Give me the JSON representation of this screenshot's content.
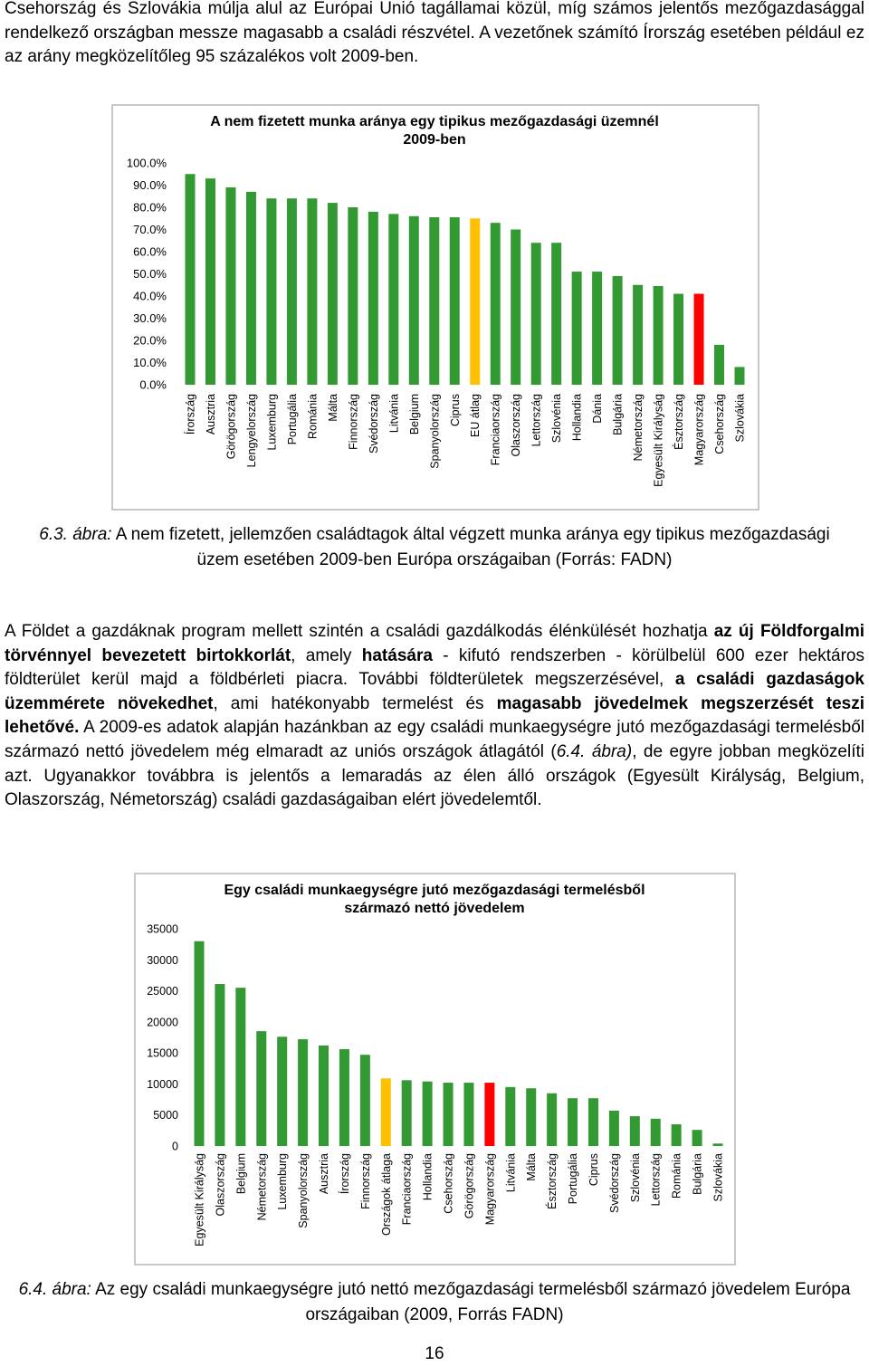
{
  "intro": "Csehország és Szlovákia múlja alul az Európai Unió tagállamai közül, míg számos jelentős mezőgazdasággal rendelkező országban messze magasabb a családi részvétel. A vezetőnek számító Írország esetében például ez az arány megközelítőleg 95 százalékos volt 2009-ben.",
  "figure_1_caption": {
    "label": "6.3. ábra:",
    "text": "A nem fizetett, jellemzően családtagok által végzett munka aránya egy tipikus mezőgazdasági üzem esetében 2009-ben Európa országaiban (Forrás: FADN)"
  },
  "body": [
    {
      "text": "A Földet a gazdáknak program mellett szintén a családi gazdálkodás élénkülését hozhatja "
    },
    {
      "text": "az új Földforgalmi törvénnyel bevezetett birtokkorlát",
      "style": "bold"
    },
    {
      "text": ", amely "
    },
    {
      "text": "hatására",
      "style": "bold"
    },
    {
      "text": " - kifutó rendszerben - körülbelül 600 ezer hektáros földterület kerül majd a földbérleti piacra. További földterületek megszerzésével, "
    },
    {
      "text": "a családi gazdaságok üzemmérete növekedhet",
      "style": "bold"
    },
    {
      "text": ", ami hatékonyabb termelést és "
    },
    {
      "text": "magasabb jövedelmek megszerzését teszi lehetővé.",
      "style": "bold"
    },
    {
      "text": " A 2009-es adatok alapján hazánkban az egy családi munkaegységre jutó mezőgazdasági termelésből származó nettó jövedelem még elmaradt az uniós országok átlagától ("
    },
    {
      "text": "6.4. ábra)",
      "style": "italic"
    },
    {
      "text": ", de egyre jobban megközelíti azt. Ugyanakkor továbbra is jelentős a lemaradás az élen álló országok (Egyesült Királyság, Belgium, Olaszország, Németország) családi gazdaságaiban elért jövedelemtől."
    }
  ],
  "figure_2_caption": {
    "label": "6.4. ábra:",
    "text": "Az egy családi munkaegységre jutó nettó mezőgazdasági termelésből származó jövedelem Európa országaiban (2009, Forrás FADN)"
  },
  "page_number": "16",
  "chart_data": [
    {
      "type": "bar",
      "title": "A nem fizetett munka aránya egy tipikus mezőgazdasági üzemnél 2009-ben",
      "categories": [
        "Írország",
        "Ausztria",
        "Görögország",
        "Lengyelország",
        "Luxemburg",
        "Portugália",
        "Románia",
        "Málta",
        "Finnország",
        "Svédország",
        "Litvánia",
        "Belgium",
        "Spanyolország",
        "Ciprus",
        "EU átlag",
        "Franciaország",
        "Olaszország",
        "Lettország",
        "Szlovénia",
        "Hollandia",
        "Dánia",
        "Bulgária",
        "Németország",
        "Egyesült Királyság",
        "Észtország",
        "Magyarország",
        "Csehország",
        "Szlovákia"
      ],
      "values": [
        95,
        93,
        89,
        87,
        84,
        84,
        84,
        82,
        80,
        78,
        77,
        76,
        75.5,
        75.5,
        75,
        73,
        70,
        64,
        64,
        51,
        51,
        49,
        45,
        44.5,
        41,
        41,
        18,
        8
      ],
      "colors": [
        "#339933",
        "#339933",
        "#339933",
        "#339933",
        "#339933",
        "#339933",
        "#339933",
        "#339933",
        "#339933",
        "#339933",
        "#339933",
        "#339933",
        "#339933",
        "#339933",
        "#ffc000",
        "#339933",
        "#339933",
        "#339933",
        "#339933",
        "#339933",
        "#339933",
        "#339933",
        "#339933",
        "#339933",
        "#339933",
        "#ff0000",
        "#339933",
        "#339933"
      ],
      "ylim": [
        0,
        100
      ],
      "yticks": [
        {
          "value": 0,
          "label": "0.0%"
        },
        {
          "value": 10,
          "label": "10.0%"
        },
        {
          "value": 20,
          "label": "20.0%"
        },
        {
          "value": 30,
          "label": "30.0%"
        },
        {
          "value": 40,
          "label": "40.0%"
        },
        {
          "value": 50,
          "label": "50.0%"
        },
        {
          "value": 60,
          "label": "60.0%"
        },
        {
          "value": 70,
          "label": "70.0%"
        },
        {
          "value": 80,
          "label": "80.0%"
        },
        {
          "value": 90,
          "label": "90.0%"
        },
        {
          "value": 100,
          "label": "100.0%"
        }
      ],
      "grid": false
    },
    {
      "type": "bar",
      "title": "Egy családi munkaegységre jutó mezőgazdasági termelésből származó nettó jövedelem",
      "categories": [
        "Egyesült Királyság",
        "Olaszország",
        "Belgium",
        "Németország",
        "Luxemburg",
        "Spanyolország",
        "Ausztria",
        "Írország",
        "Finnország",
        "Országok átlaga",
        "Franciaország",
        "Hollandia",
        "Csehország",
        "Görögország",
        "Magyarország",
        "Litvánia",
        "Málta",
        "Észtország",
        "Portugália",
        "Ciprus",
        "Svédország",
        "Szlovénia",
        "Lettország",
        "Románia",
        "Bulgária",
        "Szlovákia"
      ],
      "values": [
        33000,
        26100,
        25500,
        18500,
        17600,
        17200,
        16200,
        15600,
        14700,
        10900,
        10600,
        10400,
        10200,
        10200,
        10200,
        9500,
        9300,
        8500,
        7700,
        7700,
        5700,
        4800,
        4400,
        3500,
        2600,
        400
      ],
      "colors": [
        "#339933",
        "#339933",
        "#339933",
        "#339933",
        "#339933",
        "#339933",
        "#339933",
        "#339933",
        "#339933",
        "#ffc000",
        "#339933",
        "#339933",
        "#339933",
        "#339933",
        "#ff0000",
        "#339933",
        "#339933",
        "#339933",
        "#339933",
        "#339933",
        "#339933",
        "#339933",
        "#339933",
        "#339933",
        "#339933",
        "#339933"
      ],
      "ylim": [
        0,
        35000
      ],
      "yticks": [
        0,
        5000,
        10000,
        15000,
        20000,
        25000,
        30000,
        35000
      ],
      "grid": false
    }
  ]
}
